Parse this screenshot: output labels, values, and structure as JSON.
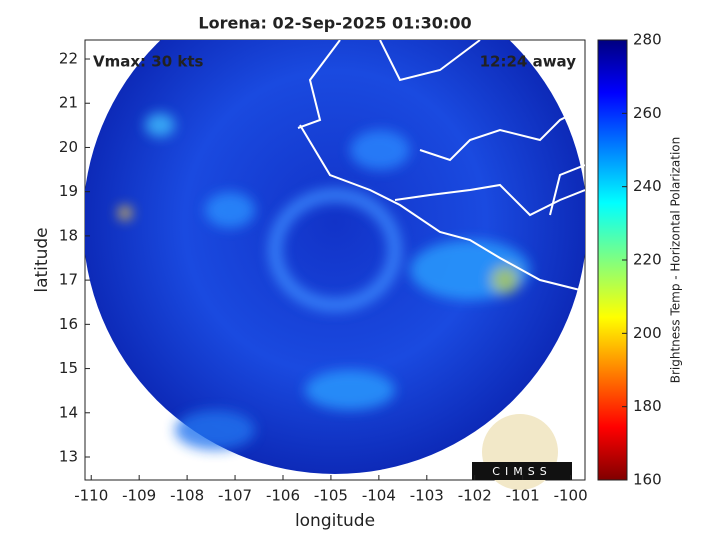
{
  "map": {
    "title": "Lorena: 02-Sep-2025 01:30:00",
    "annotations": [
      "Vmax: 30 kts",
      "12:24 away"
    ],
    "xlabel": "longitude",
    "ylabel": "latitude",
    "xlim": [
      -110.13,
      -99.7
    ],
    "xticks": [
      -110,
      -109,
      -108,
      -107,
      -106,
      -105,
      -104,
      -103,
      -102,
      -101,
      -100
    ],
    "ylim": [
      12.48,
      22.43
    ],
    "yticks": [
      13,
      14,
      15,
      16,
      17,
      18,
      19,
      20,
      21,
      22
    ],
    "colorbar": {
      "label": "Brightness Temp - Horizontal Polarization",
      "lim": [
        160,
        280
      ],
      "ticks": [
        160,
        180,
        200,
        220,
        240,
        260,
        280
      ]
    },
    "logo": "CIMSS"
  }
}
